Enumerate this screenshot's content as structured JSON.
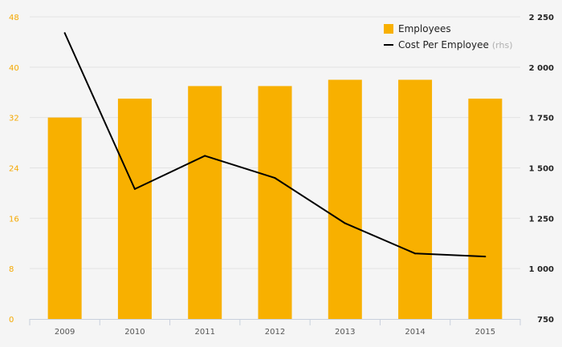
{
  "chart_data": {
    "type": "bar+line",
    "categories": [
      "2009",
      "2010",
      "2011",
      "2012",
      "2013",
      "2014",
      "2015"
    ],
    "series": [
      {
        "name": "Employees",
        "type": "bar",
        "axis": "left",
        "color": "#f8b000",
        "values": [
          32,
          35,
          37,
          37,
          38,
          38,
          35
        ]
      },
      {
        "name": "Cost Per Employee",
        "note": "(rhs)",
        "type": "line",
        "axis": "right",
        "color": "#000000",
        "values": [
          2170,
          1395,
          1560,
          1450,
          1225,
          1075,
          1060
        ]
      }
    ],
    "y_left": {
      "min": 0,
      "max": 48,
      "ticks": [
        "0",
        "8",
        "16",
        "24",
        "32",
        "40",
        "48"
      ]
    },
    "y_right": {
      "min": 750,
      "max": 2250,
      "ticks": [
        "750",
        "1 000",
        "1 250",
        "1 500",
        "1 750",
        "2 000",
        "2 250"
      ]
    },
    "grid": true,
    "legend_position": "top-right",
    "colors": {
      "left_axis_text": "#f5a800",
      "grid": "#e3e3e3",
      "background": "#f5f5f5"
    }
  }
}
